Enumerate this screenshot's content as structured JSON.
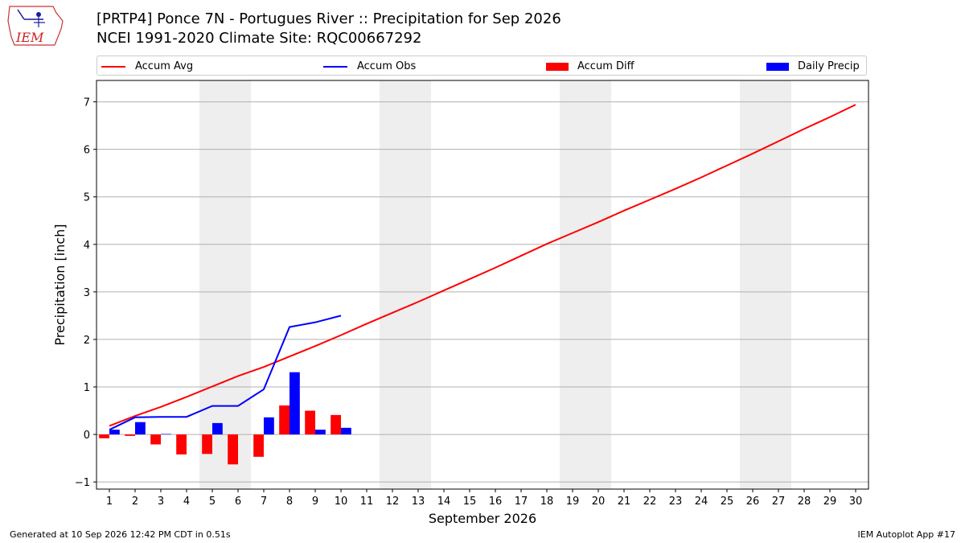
{
  "header": {
    "title_line1": "[PRTP4] Ponce 7N - Portugues River :: Precipitation for Sep 2026",
    "title_line2": "NCEI 1991-2020 Climate Site: RQC00667292",
    "logo_text": "IEM"
  },
  "footer": {
    "left": "Generated at 10 Sep 2026 12:42 PM CDT in 0.51s",
    "right": "IEM Autoplot App #17"
  },
  "colors": {
    "accum_avg": "#ff0000",
    "accum_obs": "#0000ff",
    "accum_diff": "#ff0000",
    "daily_precip": "#0000ff",
    "weekend_band": "#eeeeee",
    "grid": "#b0b0b0"
  },
  "chart_data": {
    "type": "bar",
    "xlabel": "September 2026",
    "ylabel": "Precipitation [inch]",
    "xlim": [
      0.5,
      30.5
    ],
    "ylim": [
      -1.15,
      7.45
    ],
    "x_ticks": [
      1,
      2,
      3,
      4,
      5,
      6,
      7,
      8,
      9,
      10,
      11,
      12,
      13,
      14,
      15,
      16,
      17,
      18,
      19,
      20,
      21,
      22,
      23,
      24,
      25,
      26,
      27,
      28,
      29,
      30
    ],
    "y_ticks": [
      -1,
      0,
      1,
      2,
      3,
      4,
      5,
      6,
      7
    ],
    "grid": "horizontal",
    "legend": [
      "Accum Avg",
      "Accum Obs",
      "Accum Diff",
      "Daily Precip"
    ],
    "legend_placement": "top",
    "weekend_bands": [
      [
        4.5,
        6.5
      ],
      [
        11.5,
        13.5
      ],
      [
        18.5,
        20.5
      ],
      [
        25.5,
        27.5
      ]
    ],
    "series": [
      {
        "name": "Accum Avg",
        "kind": "line",
        "x": [
          1,
          2,
          3,
          4,
          5,
          6,
          7,
          8,
          9,
          10,
          11,
          12,
          13,
          14,
          15,
          16,
          17,
          18,
          19,
          20,
          21,
          22,
          23,
          24,
          25,
          26,
          27,
          28,
          29,
          30
        ],
        "values": [
          0.18,
          0.39,
          0.58,
          0.79,
          1.01,
          1.23,
          1.42,
          1.64,
          1.86,
          2.09,
          2.33,
          2.56,
          2.79,
          3.03,
          3.27,
          3.51,
          3.76,
          4.01,
          4.24,
          4.47,
          4.71,
          4.94,
          5.17,
          5.41,
          5.66,
          5.91,
          6.17,
          6.43,
          6.68,
          6.94
        ]
      },
      {
        "name": "Accum Obs",
        "kind": "line",
        "x": [
          1,
          2,
          3,
          4,
          5,
          6,
          7,
          8,
          9,
          10
        ],
        "values": [
          0.1,
          0.36,
          0.37,
          0.37,
          0.6,
          0.6,
          0.95,
          2.26,
          2.36,
          2.5
        ]
      },
      {
        "name": "Accum Diff",
        "kind": "bar",
        "x": [
          1,
          2,
          3,
          4,
          5,
          6,
          7,
          8,
          9,
          10
        ],
        "values": [
          -0.08,
          -0.03,
          -0.21,
          -0.42,
          -0.41,
          -0.63,
          -0.47,
          0.61,
          0.5,
          0.41
        ]
      },
      {
        "name": "Daily Precip",
        "kind": "bar",
        "x": [
          1,
          2,
          3,
          4,
          5,
          6,
          7,
          8,
          9,
          10
        ],
        "values": [
          0.1,
          0.26,
          0.01,
          0.0,
          0.24,
          0.0,
          0.36,
          1.31,
          0.1,
          0.14
        ]
      }
    ]
  }
}
